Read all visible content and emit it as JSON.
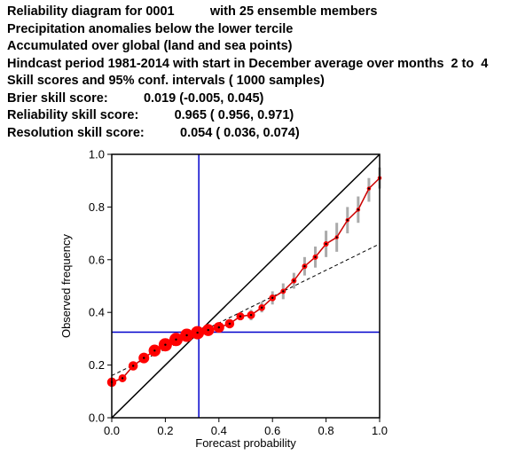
{
  "header": {
    "line1_a": "Reliability diagram for 0001",
    "line1_b": "with 25 ensemble members",
    "line2": "Precipitation anomalies below the lower tercile",
    "line3": "Accumulated over global (land and sea points)",
    "line4": "Hindcast period 1981-2014 with start in December average over months  2 to  4",
    "line5": "Skill scores and 95% conf. intervals ( 1000 samples)",
    "brier_label": "Brier skill score:",
    "brier_value": "0.019 (-0.005, 0.045)",
    "rel_label": "Reliability skill score:",
    "rel_value": "0.965 ( 0.956, 0.971)",
    "res_label": "Resolution skill score:",
    "res_value": "0.054 ( 0.036, 0.074)"
  },
  "chart_data": {
    "type": "line",
    "xlabel": "Forecast probability",
    "ylabel": "Observed frequency",
    "xlim": [
      0,
      1
    ],
    "ylim": [
      0,
      1
    ],
    "xticks": [
      "0.0",
      "0.2",
      "0.4",
      "0.6",
      "0.8",
      "1.0"
    ],
    "yticks": [
      "0.0",
      "0.2",
      "0.4",
      "0.6",
      "0.8",
      "1.0"
    ],
    "climatology": 0.325,
    "regression_line": {
      "x": [
        0,
        1
      ],
      "y": [
        0.16,
        0.66
      ]
    },
    "diagonal": {
      "x": [
        0,
        1
      ],
      "y": [
        0,
        1
      ]
    },
    "colors": {
      "points": "#ff0000",
      "line": "#cc0000",
      "climatology": "#0000cc",
      "bars": "#aaaaaa"
    },
    "points": [
      {
        "x": 0.0,
        "y": 0.135,
        "size": 5,
        "lo": null,
        "hi": null
      },
      {
        "x": 0.04,
        "y": 0.15,
        "size": 4,
        "lo": null,
        "hi": null
      },
      {
        "x": 0.08,
        "y": 0.197,
        "size": 5,
        "lo": null,
        "hi": null
      },
      {
        "x": 0.12,
        "y": 0.227,
        "size": 6,
        "lo": null,
        "hi": null
      },
      {
        "x": 0.16,
        "y": 0.255,
        "size": 7,
        "lo": null,
        "hi": null
      },
      {
        "x": 0.2,
        "y": 0.277,
        "size": 8,
        "lo": null,
        "hi": null
      },
      {
        "x": 0.24,
        "y": 0.297,
        "size": 8,
        "lo": null,
        "hi": null
      },
      {
        "x": 0.28,
        "y": 0.313,
        "size": 8,
        "lo": null,
        "hi": null
      },
      {
        "x": 0.32,
        "y": 0.323,
        "size": 8,
        "lo": null,
        "hi": null
      },
      {
        "x": 0.36,
        "y": 0.333,
        "size": 7,
        "lo": null,
        "hi": null
      },
      {
        "x": 0.4,
        "y": 0.343,
        "size": 6,
        "lo": null,
        "hi": null
      },
      {
        "x": 0.44,
        "y": 0.357,
        "size": 5,
        "lo": null,
        "hi": null
      },
      {
        "x": 0.48,
        "y": 0.385,
        "size": 4,
        "lo": 0.37,
        "hi": 0.4
      },
      {
        "x": 0.52,
        "y": 0.39,
        "size": 4,
        "lo": 0.37,
        "hi": 0.41
      },
      {
        "x": 0.56,
        "y": 0.418,
        "size": 3,
        "lo": 0.4,
        "hi": 0.44
      },
      {
        "x": 0.6,
        "y": 0.455,
        "size": 3,
        "lo": 0.43,
        "hi": 0.48
      },
      {
        "x": 0.64,
        "y": 0.48,
        "size": 2,
        "lo": 0.45,
        "hi": 0.51
      },
      {
        "x": 0.68,
        "y": 0.52,
        "size": 2,
        "lo": 0.49,
        "hi": 0.55
      },
      {
        "x": 0.72,
        "y": 0.575,
        "size": 2,
        "lo": 0.54,
        "hi": 0.61
      },
      {
        "x": 0.76,
        "y": 0.61,
        "size": 2,
        "lo": 0.57,
        "hi": 0.65
      },
      {
        "x": 0.8,
        "y": 0.66,
        "size": 2,
        "lo": 0.61,
        "hi": 0.71
      },
      {
        "x": 0.84,
        "y": 0.685,
        "size": 1,
        "lo": 0.63,
        "hi": 0.74
      },
      {
        "x": 0.88,
        "y": 0.75,
        "size": 1,
        "lo": 0.7,
        "hi": 0.8
      },
      {
        "x": 0.92,
        "y": 0.79,
        "size": 1,
        "lo": 0.74,
        "hi": 0.84
      },
      {
        "x": 0.96,
        "y": 0.87,
        "size": 1,
        "lo": 0.82,
        "hi": 0.91
      },
      {
        "x": 1.0,
        "y": 0.91,
        "size": 1,
        "lo": 0.87,
        "hi": 0.95
      }
    ]
  }
}
